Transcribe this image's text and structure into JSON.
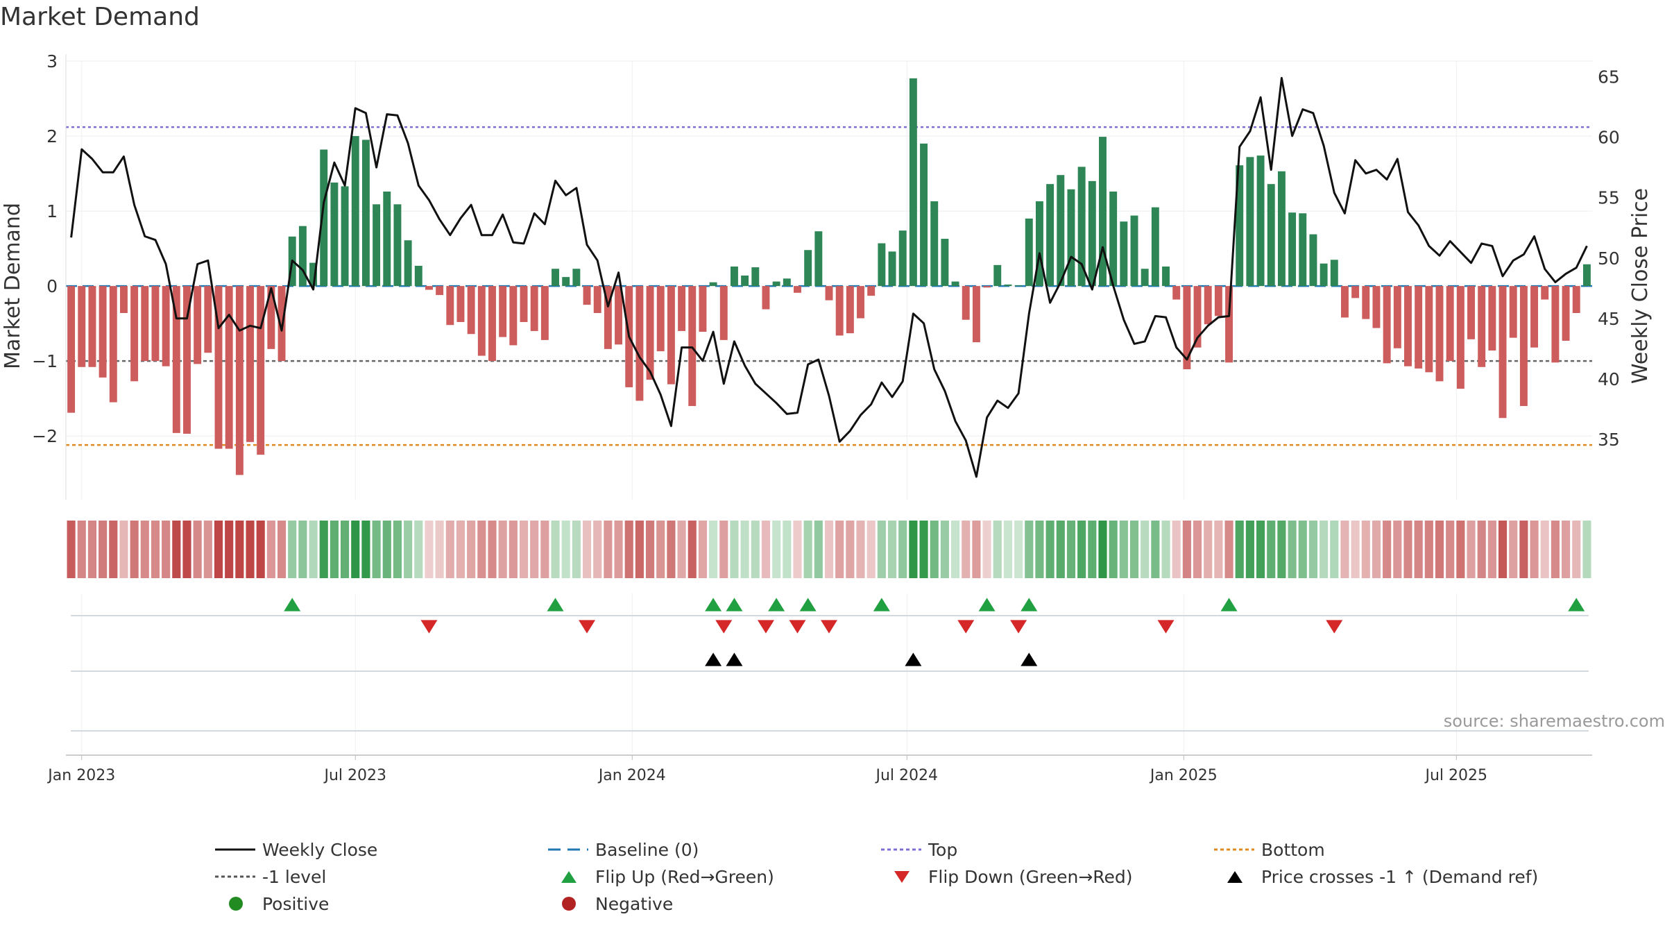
{
  "chart_data": {
    "type": "bar",
    "title": "Market Demand",
    "ylabel_left": "Market Demand",
    "ylabel_right": "Weekly Close Price",
    "ylim_left": [
      -2.85,
      3.0
    ],
    "ylim_right": [
      30.0,
      66.3
    ],
    "yticks_left": [
      -2,
      -1,
      0,
      1,
      2,
      3
    ],
    "ytick_labels_left": [
      "−2",
      "−1",
      "0",
      "1",
      "2",
      "3"
    ],
    "yticks_right": [
      35,
      40,
      45,
      50,
      55,
      60,
      65
    ],
    "ytick_labels_right": [
      "35",
      "40",
      "45",
      "50",
      "55",
      "60",
      "65"
    ],
    "x_start": "2022-12-26",
    "x_interval_days": 7,
    "x_range_weeks": [
      -0.5,
      144.5
    ],
    "xticks": [
      {
        "week": 1,
        "label": "Jan 2023"
      },
      {
        "week": 27,
        "label": "Jul 2023"
      },
      {
        "week": 53.3,
        "label": "Jan 2024"
      },
      {
        "week": 79.4,
        "label": "Jul 2024"
      },
      {
        "week": 105.7,
        "label": "Jan 2025"
      },
      {
        "week": 131.6,
        "label": "Jul 2025"
      }
    ],
    "reference_lines": {
      "top": 2.12,
      "bottom": -2.12,
      "minus_one": -1.0,
      "baseline": 0
    },
    "demand": [
      -1.69,
      -1.08,
      -1.08,
      -1.22,
      -1.55,
      -0.36,
      -1.27,
      -1.0,
      -1.0,
      -1.07,
      -1.96,
      -1.97,
      -1.04,
      -0.89,
      -2.17,
      -2.17,
      -2.52,
      -2.08,
      -2.25,
      -0.84,
      -1.0,
      0.66,
      0.8,
      0.31,
      1.82,
      1.38,
      1.33,
      2.0,
      1.95,
      1.09,
      1.26,
      1.09,
      0.61,
      0.27,
      -0.05,
      -0.12,
      -0.52,
      -0.48,
      -0.64,
      -0.93,
      -1.0,
      -0.68,
      -0.79,
      -0.48,
      -0.6,
      -0.72,
      0.23,
      0.12,
      0.23,
      -0.25,
      -0.36,
      -0.84,
      -0.78,
      -1.35,
      -1.53,
      -1.25,
      -0.87,
      -1.31,
      -0.6,
      -1.6,
      -0.61,
      0.05,
      -0.72,
      0.26,
      0.14,
      0.25,
      -0.31,
      0.06,
      0.1,
      -0.09,
      0.48,
      0.73,
      -0.19,
      -0.66,
      -0.63,
      -0.43,
      -0.13,
      0.57,
      0.46,
      0.74,
      2.77,
      1.9,
      1.13,
      0.63,
      0.06,
      -0.45,
      -0.75,
      -0.02,
      0.28,
      0.02,
      0.01,
      0.9,
      1.13,
      1.36,
      1.48,
      1.29,
      1.59,
      1.4,
      1.99,
      1.26,
      0.86,
      0.94,
      0.23,
      1.05,
      0.26,
      -0.18,
      -1.11,
      -0.82,
      -0.51,
      -0.4,
      -1.02,
      1.61,
      1.72,
      1.74,
      1.36,
      1.53,
      0.98,
      0.97,
      0.69,
      0.3,
      0.35,
      -0.42,
      -0.16,
      -0.44,
      -0.56,
      -1.03,
      -0.83,
      -1.07,
      -1.1,
      -1.15,
      -1.27,
      -1.0,
      -1.37,
      -0.71,
      -1.08,
      -0.86,
      -1.76,
      -0.69,
      -1.6,
      -0.82,
      -0.18,
      -1.02,
      -0.73,
      -0.36,
      0.29
    ],
    "price": [
      51.7,
      59.0,
      58.2,
      57.1,
      57.1,
      58.4,
      54.4,
      51.8,
      51.5,
      49.5,
      45.0,
      45.0,
      49.5,
      49.8,
      44.2,
      45.3,
      44.0,
      44.4,
      44.2,
      47.5,
      44.0,
      49.8,
      49.0,
      47.4,
      54.6,
      57.9,
      56.0,
      62.4,
      62.0,
      57.5,
      61.9,
      61.8,
      59.5,
      56.0,
      54.8,
      53.2,
      51.9,
      53.3,
      54.4,
      51.9,
      51.9,
      53.6,
      51.3,
      51.2,
      53.7,
      52.8,
      56.4,
      55.2,
      55.8,
      51.1,
      49.8,
      46.0,
      48.8,
      43.5,
      41.8,
      40.6,
      38.7,
      36.1,
      42.6,
      42.6,
      41.5,
      43.9,
      39.6,
      43.1,
      41.1,
      39.6,
      38.8,
      38.0,
      37.1,
      37.2,
      41.2,
      41.6,
      38.6,
      34.8,
      35.7,
      37.0,
      37.9,
      39.7,
      38.5,
      39.8,
      45.4,
      44.6,
      40.8,
      39.0,
      36.5,
      34.9,
      31.9,
      36.8,
      38.2,
      37.6,
      38.8,
      45.4,
      50.4,
      46.3,
      48.0,
      50.1,
      49.5,
      47.4,
      50.9,
      47.7,
      44.9,
      42.9,
      43.1,
      45.2,
      45.1,
      42.6,
      41.6,
      43.4,
      44.4,
      45.1,
      45.2,
      59.2,
      60.5,
      63.3,
      57.3,
      64.9,
      60.1,
      62.3,
      62.0,
      59.3,
      55.4,
      53.7,
      58.1,
      57.0,
      57.3,
      56.5,
      58.2,
      53.8,
      52.7,
      51.0,
      50.2,
      51.4,
      50.5,
      49.6,
      51.2,
      51.0,
      48.5,
      49.8,
      50.3,
      51.8,
      49.1,
      48.0,
      48.7,
      49.2,
      51.0
    ],
    "flip_up_weeks": [
      21,
      46,
      61,
      63,
      67,
      70,
      77,
      87,
      91,
      110,
      143
    ],
    "flip_down_weeks": [
      34,
      49,
      62,
      66,
      69,
      72,
      85,
      90,
      104,
      120
    ],
    "price_cross_up_weeks": [
      61,
      63,
      80,
      91
    ],
    "source": "source: sharemaestro.com",
    "colors": {
      "positive_bar": "#2e8555",
      "negative_bar": "#cd5c5c",
      "price_line": "#111111",
      "top_line": "#7b6fd6",
      "bottom_line": "#e08a1e",
      "minus_one_line": "#666666",
      "baseline": "#1f77b4",
      "flip_up": "#20a040",
      "flip_down": "#d62728",
      "cross": "#000000",
      "positive_dot": "#228b22",
      "negative_dot": "#b22222"
    },
    "legend": [
      {
        "label": "Weekly Close",
        "symbol": "solid-line",
        "color": "#111111"
      },
      {
        "label": "Baseline (0)",
        "symbol": "dash-line",
        "color": "#1f77b4"
      },
      {
        "label": "Top",
        "symbol": "dot-line",
        "color": "#7b6fd6"
      },
      {
        "label": "Bottom",
        "symbol": "dot-line",
        "color": "#e08a1e"
      },
      {
        "label": "-1 level",
        "symbol": "dot-line",
        "color": "#555555"
      },
      {
        "label": "Flip Up (Red→Green)",
        "symbol": "triangle-up",
        "color": "#20a040"
      },
      {
        "label": "Flip Down (Green→Red)",
        "symbol": "triangle-down",
        "color": "#d62728"
      },
      {
        "label": "Price crosses -1 ↑ (Demand ref)",
        "symbol": "triangle-up",
        "color": "#000000"
      },
      {
        "label": "Positive",
        "symbol": "dot",
        "color": "#228b22"
      },
      {
        "label": "Negative",
        "symbol": "dot",
        "color": "#b22222"
      }
    ]
  }
}
